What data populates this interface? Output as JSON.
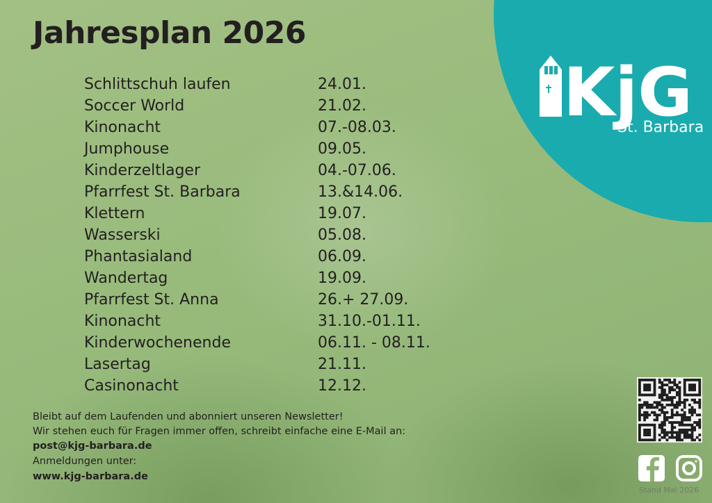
{
  "header": {
    "title": "Jahresplan 2026"
  },
  "logo": {
    "name": "KjG",
    "subtitle": "St. Barbara"
  },
  "events": [
    {
      "name": "Schlittschuh laufen",
      "date": "24.01."
    },
    {
      "name": "Soccer World",
      "date": "21.02."
    },
    {
      "name": "Kinonacht",
      "date": "07.-08.03."
    },
    {
      "name": "Jumphouse",
      "date": "09.05."
    },
    {
      "name": "Kinderzeltlager",
      "date": "04.-07.06."
    },
    {
      "name": "Pfarrfest St. Barbara",
      "date": "13.&14.06."
    },
    {
      "name": "Klettern",
      "date": "19.07."
    },
    {
      "name": "Wasserski",
      "date": "05.08."
    },
    {
      "name": "Phantasialand",
      "date": "06.09."
    },
    {
      "name": "Wandertag",
      "date": "19.09."
    },
    {
      "name": "Pfarrfest St. Anna",
      "date": "26.+ 27.09."
    },
    {
      "name": "Kinonacht",
      "date": "31.10.-01.11."
    },
    {
      "name": "Kinderwochenende",
      "date": "06.11. - 08.11."
    },
    {
      "name": "Lasertag",
      "date": "21.11."
    },
    {
      "name": "Casinonacht",
      "date": "12.12."
    }
  ],
  "footer": {
    "newsletter": "Bleibt auf dem Laufenden und abonniert unseren Newsletter!",
    "contact": "Wir stehen euch für Fragen immer offen, schreibt einfache eine E-Mail an:",
    "email": "post@kjg-barbara.de",
    "signup": "Anmeldungen unter:",
    "website": "www.kjg-barbara.de"
  },
  "stand": "Stand Mai 2026"
}
